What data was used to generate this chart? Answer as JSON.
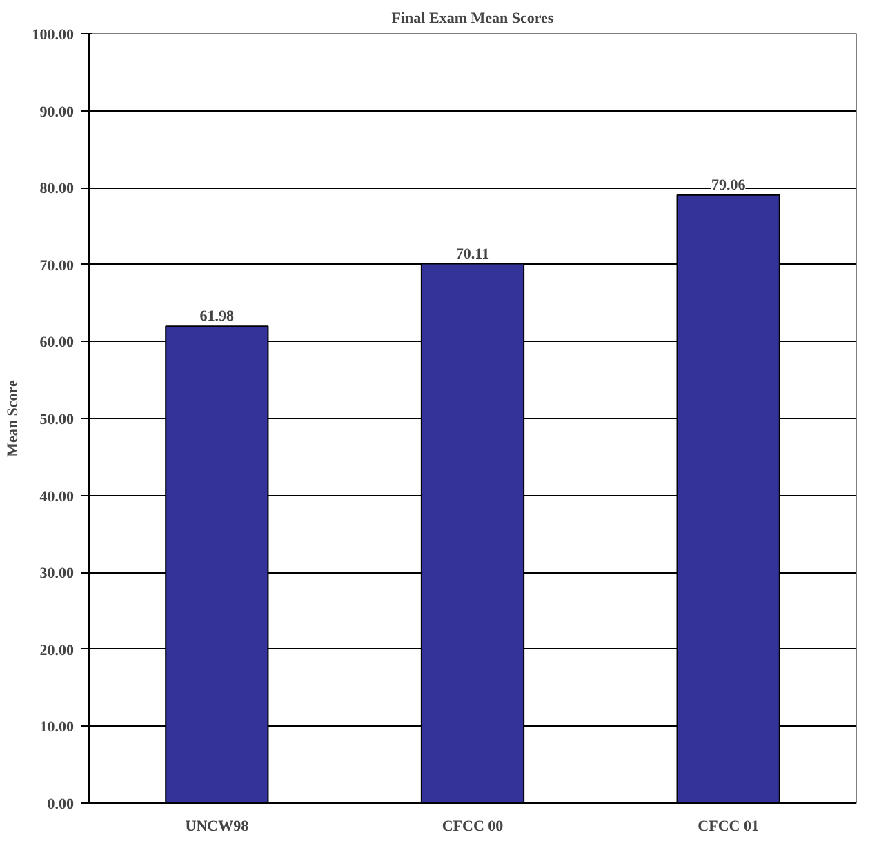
{
  "chart_data": {
    "type": "bar",
    "title": "Final Exam Mean Scores",
    "ylabel": "Mean Score",
    "categories": [
      "UNCW98",
      "CFCC 00",
      "CFCC 01"
    ],
    "values": [
      61.98,
      70.11,
      79.06
    ],
    "color": "#333399",
    "data_labels": true,
    "value_labels": [
      "61.98",
      "70.11",
      "79.06"
    ],
    "ylim": [
      0,
      100
    ],
    "yticks": [
      {
        "value": 0,
        "label": "0.00"
      },
      {
        "value": 10,
        "label": "10.00"
      },
      {
        "value": 20,
        "label": "20.00"
      },
      {
        "value": 30,
        "label": "30.00"
      },
      {
        "value": 40,
        "label": "40.00"
      },
      {
        "value": 50,
        "label": "50.00"
      },
      {
        "value": 60,
        "label": "60.00"
      },
      {
        "value": 70,
        "label": "70.00"
      },
      {
        "value": 80,
        "label": "80.00"
      },
      {
        "value": 90,
        "label": "90.00"
      },
      {
        "value": 100,
        "label": "100.00"
      }
    ],
    "grid": "y"
  }
}
